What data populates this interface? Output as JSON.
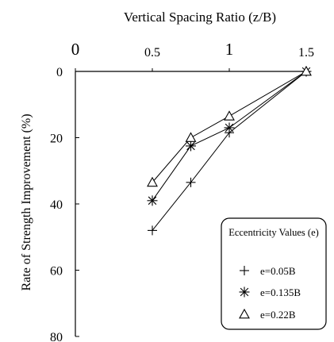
{
  "chart_data": {
    "type": "line",
    "title": "",
    "xlabel": "Vertical Spacing Ratio (z/B)",
    "ylabel": "Rate of Strength Improvement (%)",
    "xlim": [
      0,
      1.5
    ],
    "ylim": [
      0,
      80
    ],
    "y_inverted": true,
    "x_axis_position": "top",
    "grid": false,
    "x_ticks": [
      {
        "value": 0,
        "label": "0"
      },
      {
        "value": 0.5,
        "label": "0.5"
      },
      {
        "value": 1,
        "label": "1"
      },
      {
        "value": 1.5,
        "label": "1.5"
      }
    ],
    "y_ticks": [
      {
        "value": 0,
        "label": "0"
      },
      {
        "value": 20,
        "label": "20"
      },
      {
        "value": 40,
        "label": "40"
      },
      {
        "value": 60,
        "label": "60"
      },
      {
        "value": 80,
        "label": "80"
      }
    ],
    "legend": {
      "title": "Eccentricity Values (e)",
      "position": "bottom-right"
    },
    "series": [
      {
        "name": "e=0.05B",
        "marker": "plus",
        "x": [
          0.5,
          0.75,
          1.0,
          1.5
        ],
        "y": [
          48,
          33.5,
          18.5,
          0
        ]
      },
      {
        "name": "e=0.135B",
        "marker": "asterisk",
        "x": [
          0.5,
          0.75,
          1.0,
          1.5
        ],
        "y": [
          39,
          22.5,
          17,
          0
        ]
      },
      {
        "name": "e=0.22B",
        "marker": "triangle",
        "x": [
          0.5,
          0.75,
          1.0,
          1.5
        ],
        "y": [
          33.5,
          20,
          13.5,
          0
        ]
      }
    ],
    "colors": {
      "line": "#000000",
      "background": "#ffffff"
    }
  }
}
